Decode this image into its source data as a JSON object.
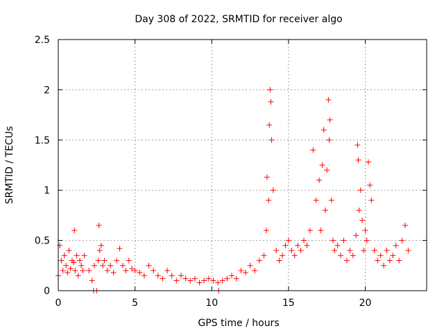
{
  "chart_data": {
    "type": "scatter",
    "title": "Day 308 of 2022, SRMTID for receiver algo",
    "xlabel": "GPS time / hours",
    "ylabel": "SRMTID / TECUs",
    "xlim": [
      0,
      24
    ],
    "ylim": [
      0,
      2.5
    ],
    "xticks": [
      0,
      5,
      10,
      15,
      20
    ],
    "yticks": [
      0,
      0.5,
      1,
      1.5,
      2,
      2.5
    ],
    "ytick_labels": [
      "0",
      "0.5",
      "1",
      "1.5",
      "2",
      "2.5"
    ],
    "grid": true,
    "marker": "+",
    "marker_color": "#ff0000",
    "series": [
      {
        "name": "SRMTID",
        "x": [
          0.0,
          0.1,
          0.2,
          0.3,
          0.4,
          0.5,
          0.6,
          0.7,
          0.8,
          0.9,
          1.0,
          1.05,
          1.1,
          1.2,
          1.3,
          1.4,
          1.5,
          1.6,
          1.7,
          2.0,
          2.2,
          2.3,
          2.35,
          2.5,
          2.6,
          2.65,
          2.7,
          2.8,
          2.9,
          3.0,
          3.2,
          3.4,
          3.6,
          3.8,
          4.0,
          4.2,
          4.4,
          4.6,
          4.8,
          5.0,
          5.3,
          5.6,
          5.9,
          6.2,
          6.5,
          6.8,
          7.1,
          7.4,
          7.7,
          8.0,
          8.3,
          8.6,
          8.9,
          9.2,
          9.5,
          9.8,
          10.1,
          10.4,
          10.45,
          10.7,
          11.0,
          11.3,
          11.6,
          11.9,
          12.2,
          12.5,
          12.8,
          13.1,
          13.4,
          13.55,
          13.6,
          13.7,
          13.75,
          13.8,
          13.85,
          13.9,
          14.0,
          14.2,
          14.4,
          14.6,
          14.8,
          15.0,
          15.2,
          15.4,
          15.6,
          15.8,
          16.0,
          16.2,
          16.4,
          16.6,
          16.8,
          17.0,
          17.1,
          17.2,
          17.3,
          17.4,
          17.5,
          17.6,
          17.65,
          17.7,
          17.8,
          17.9,
          18.0,
          18.2,
          18.4,
          18.6,
          18.8,
          19.0,
          19.2,
          19.4,
          19.5,
          19.55,
          19.6,
          19.7,
          19.8,
          19.9,
          20.0,
          20.1,
          20.2,
          20.3,
          20.4,
          20.6,
          20.8,
          21.0,
          21.2,
          21.4,
          21.6,
          21.8,
          22.0,
          22.2,
          22.4,
          22.6,
          22.8
        ],
        "y": [
          0.15,
          0.45,
          0.3,
          0.2,
          0.35,
          0.25,
          0.18,
          0.4,
          0.22,
          0.3,
          0.28,
          0.6,
          0.2,
          0.35,
          0.15,
          0.3,
          0.25,
          0.2,
          0.35,
          0.2,
          0.1,
          0.0,
          0.25,
          0.0,
          0.3,
          0.65,
          0.4,
          0.45,
          0.25,
          0.3,
          0.2,
          0.25,
          0.18,
          0.3,
          0.42,
          0.25,
          0.2,
          0.3,
          0.22,
          0.2,
          0.18,
          0.15,
          0.25,
          0.2,
          0.15,
          0.12,
          0.2,
          0.15,
          0.1,
          0.15,
          0.12,
          0.1,
          0.12,
          0.08,
          0.1,
          0.12,
          0.1,
          0.08,
          0.0,
          0.1,
          0.12,
          0.15,
          0.12,
          0.2,
          0.18,
          0.25,
          0.2,
          0.3,
          0.35,
          0.6,
          1.13,
          0.9,
          1.65,
          2.0,
          1.88,
          1.5,
          1.0,
          0.4,
          0.3,
          0.35,
          0.45,
          0.5,
          0.4,
          0.35,
          0.45,
          0.4,
          0.5,
          0.45,
          0.6,
          1.4,
          0.9,
          1.1,
          0.6,
          1.25,
          1.6,
          0.8,
          1.2,
          1.9,
          1.5,
          1.7,
          0.9,
          0.5,
          0.4,
          0.45,
          0.35,
          0.5,
          0.3,
          0.4,
          0.35,
          0.55,
          1.45,
          1.3,
          0.8,
          1.0,
          0.7,
          0.4,
          0.6,
          0.5,
          1.28,
          1.05,
          0.9,
          0.4,
          0.3,
          0.35,
          0.25,
          0.4,
          0.3,
          0.35,
          0.45,
          0.3,
          0.5,
          0.65,
          0.4
        ]
      }
    ]
  }
}
